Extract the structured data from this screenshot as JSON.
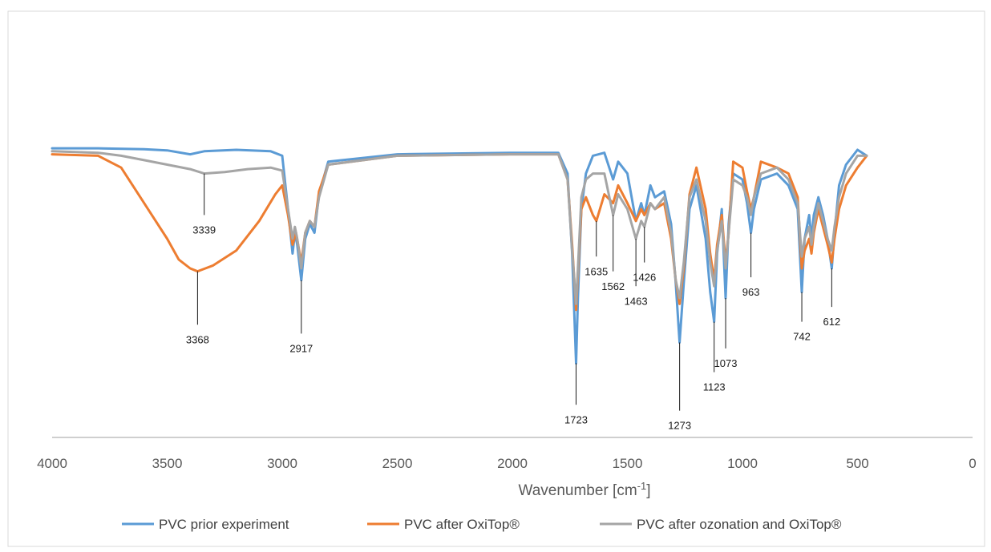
{
  "chart_data": {
    "type": "line",
    "title": "",
    "xlabel_main": "Wavenumber [cm",
    "xlabel_sup": "-1",
    "xlabel_tail": "]",
    "ylabel": "",
    "xlim": [
      4000,
      0
    ],
    "x_reversed": true,
    "ylim": [
      0,
      100
    ],
    "grid": false,
    "legend_position": "bottom",
    "x_ticks": [
      "4000",
      "3500",
      "3000",
      "2500",
      "2000",
      "1500",
      "1000",
      "500",
      "0"
    ],
    "series": [
      {
        "name": "PVC prior experiment",
        "color": "#5B9BD5",
        "points": [
          [
            4000,
            90.5
          ],
          [
            3800,
            90.5
          ],
          [
            3600,
            90.2
          ],
          [
            3500,
            89.8
          ],
          [
            3400,
            88.5
          ],
          [
            3339,
            89.5
          ],
          [
            3200,
            90
          ],
          [
            3050,
            89.5
          ],
          [
            3000,
            88
          ],
          [
            2975,
            70
          ],
          [
            2955,
            55
          ],
          [
            2945,
            62
          ],
          [
            2935,
            58
          ],
          [
            2917,
            46
          ],
          [
            2900,
            60
          ],
          [
            2880,
            65
          ],
          [
            2860,
            62
          ],
          [
            2840,
            75
          ],
          [
            2800,
            86
          ],
          [
            2500,
            88.5
          ],
          [
            2000,
            89
          ],
          [
            1800,
            89
          ],
          [
            1760,
            82
          ],
          [
            1740,
            55
          ],
          [
            1723,
            18
          ],
          [
            1715,
            40
          ],
          [
            1700,
            70
          ],
          [
            1680,
            82
          ],
          [
            1650,
            88
          ],
          [
            1600,
            89
          ],
          [
            1562,
            80
          ],
          [
            1540,
            86
          ],
          [
            1500,
            82
          ],
          [
            1463,
            66
          ],
          [
            1440,
            72
          ],
          [
            1426,
            68
          ],
          [
            1400,
            78
          ],
          [
            1380,
            74
          ],
          [
            1340,
            76
          ],
          [
            1310,
            65
          ],
          [
            1290,
            45
          ],
          [
            1273,
            25
          ],
          [
            1255,
            45
          ],
          [
            1230,
            70
          ],
          [
            1200,
            78
          ],
          [
            1160,
            60
          ],
          [
            1140,
            42
          ],
          [
            1123,
            32
          ],
          [
            1110,
            55
          ],
          [
            1090,
            70
          ],
          [
            1073,
            40
          ],
          [
            1060,
            65
          ],
          [
            1040,
            82
          ],
          [
            1000,
            80
          ],
          [
            980,
            72
          ],
          [
            963,
            62
          ],
          [
            950,
            70
          ],
          [
            920,
            80
          ],
          [
            850,
            82
          ],
          [
            800,
            78
          ],
          [
            760,
            70
          ],
          [
            742,
            42
          ],
          [
            730,
            60
          ],
          [
            710,
            68
          ],
          [
            700,
            60
          ],
          [
            690,
            68
          ],
          [
            670,
            74
          ],
          [
            650,
            68
          ],
          [
            630,
            60
          ],
          [
            612,
            50
          ],
          [
            600,
            62
          ],
          [
            580,
            78
          ],
          [
            550,
            85
          ],
          [
            500,
            90
          ],
          [
            460,
            88
          ]
        ]
      },
      {
        "name": "PVC after OxiTop®",
        "color": "#ED7D31",
        "points": [
          [
            4000,
            88.5
          ],
          [
            3800,
            88
          ],
          [
            3700,
            84
          ],
          [
            3600,
            72
          ],
          [
            3500,
            60
          ],
          [
            3450,
            53
          ],
          [
            3400,
            50
          ],
          [
            3368,
            49
          ],
          [
            3300,
            51
          ],
          [
            3200,
            56
          ],
          [
            3100,
            66
          ],
          [
            3030,
            75
          ],
          [
            3000,
            78
          ],
          [
            2975,
            68
          ],
          [
            2955,
            58
          ],
          [
            2940,
            62
          ],
          [
            2917,
            52
          ],
          [
            2900,
            62
          ],
          [
            2880,
            66
          ],
          [
            2860,
            64
          ],
          [
            2840,
            76
          ],
          [
            2800,
            85
          ],
          [
            2500,
            88
          ],
          [
            2000,
            88.5
          ],
          [
            1800,
            88.5
          ],
          [
            1760,
            80
          ],
          [
            1740,
            58
          ],
          [
            1723,
            36
          ],
          [
            1715,
            48
          ],
          [
            1700,
            70
          ],
          [
            1680,
            74
          ],
          [
            1650,
            68
          ],
          [
            1635,
            66
          ],
          [
            1600,
            75
          ],
          [
            1562,
            72
          ],
          [
            1540,
            78
          ],
          [
            1500,
            72
          ],
          [
            1463,
            66
          ],
          [
            1440,
            70
          ],
          [
            1426,
            68
          ],
          [
            1400,
            72
          ],
          [
            1380,
            70
          ],
          [
            1340,
            72
          ],
          [
            1310,
            60
          ],
          [
            1290,
            46
          ],
          [
            1273,
            38
          ],
          [
            1255,
            50
          ],
          [
            1230,
            75
          ],
          [
            1200,
            84
          ],
          [
            1160,
            70
          ],
          [
            1140,
            55
          ],
          [
            1123,
            46
          ],
          [
            1110,
            58
          ],
          [
            1090,
            68
          ],
          [
            1073,
            52
          ],
          [
            1060,
            62
          ],
          [
            1040,
            86
          ],
          [
            1000,
            84
          ],
          [
            980,
            76
          ],
          [
            963,
            70
          ],
          [
            950,
            74
          ],
          [
            920,
            86
          ],
          [
            850,
            84
          ],
          [
            800,
            82
          ],
          [
            760,
            74
          ],
          [
            742,
            50
          ],
          [
            730,
            56
          ],
          [
            710,
            60
          ],
          [
            700,
            55
          ],
          [
            690,
            62
          ],
          [
            670,
            70
          ],
          [
            650,
            64
          ],
          [
            630,
            58
          ],
          [
            612,
            52
          ],
          [
            600,
            60
          ],
          [
            580,
            70
          ],
          [
            550,
            78
          ],
          [
            500,
            84
          ],
          [
            460,
            88
          ]
        ]
      },
      {
        "name": "PVC after ozonation and OxiTop®",
        "color": "#A5A5A5",
        "points": [
          [
            4000,
            89.5
          ],
          [
            3800,
            89
          ],
          [
            3700,
            88
          ],
          [
            3600,
            86.5
          ],
          [
            3500,
            85
          ],
          [
            3400,
            83.5
          ],
          [
            3339,
            82
          ],
          [
            3250,
            82.5
          ],
          [
            3150,
            83.5
          ],
          [
            3050,
            84
          ],
          [
            3000,
            83
          ],
          [
            2975,
            70
          ],
          [
            2955,
            60
          ],
          [
            2945,
            64
          ],
          [
            2935,
            60
          ],
          [
            2917,
            50
          ],
          [
            2900,
            62
          ],
          [
            2880,
            66
          ],
          [
            2860,
            64
          ],
          [
            2840,
            74
          ],
          [
            2800,
            85
          ],
          [
            2500,
            88
          ],
          [
            2000,
            88.5
          ],
          [
            1800,
            88.5
          ],
          [
            1760,
            80
          ],
          [
            1740,
            56
          ],
          [
            1723,
            38
          ],
          [
            1715,
            50
          ],
          [
            1700,
            74
          ],
          [
            1680,
            80
          ],
          [
            1650,
            82
          ],
          [
            1635,
            82
          ],
          [
            1600,
            82
          ],
          [
            1562,
            68
          ],
          [
            1540,
            75
          ],
          [
            1500,
            70
          ],
          [
            1463,
            60
          ],
          [
            1440,
            66
          ],
          [
            1426,
            64
          ],
          [
            1400,
            72
          ],
          [
            1380,
            70
          ],
          [
            1340,
            74
          ],
          [
            1310,
            62
          ],
          [
            1290,
            46
          ],
          [
            1273,
            40
          ],
          [
            1255,
            52
          ],
          [
            1230,
            74
          ],
          [
            1200,
            80
          ],
          [
            1160,
            66
          ],
          [
            1140,
            52
          ],
          [
            1123,
            44
          ],
          [
            1110,
            56
          ],
          [
            1090,
            66
          ],
          [
            1073,
            50
          ],
          [
            1060,
            62
          ],
          [
            1040,
            80
          ],
          [
            1000,
            78
          ],
          [
            980,
            74
          ],
          [
            963,
            68
          ],
          [
            950,
            74
          ],
          [
            920,
            82
          ],
          [
            850,
            84
          ],
          [
            800,
            80
          ],
          [
            760,
            72
          ],
          [
            742,
            54
          ],
          [
            730,
            60
          ],
          [
            710,
            64
          ],
          [
            700,
            58
          ],
          [
            690,
            64
          ],
          [
            670,
            72
          ],
          [
            650,
            66
          ],
          [
            630,
            60
          ],
          [
            612,
            56
          ],
          [
            600,
            64
          ],
          [
            580,
            74
          ],
          [
            550,
            82
          ],
          [
            500,
            88
          ],
          [
            460,
            88
          ]
        ]
      }
    ],
    "annotations": [
      {
        "label": "3368",
        "x": 3368,
        "y": 49,
        "line_end": 31,
        "text_y": 28
      },
      {
        "label": "3339",
        "x": 3339,
        "y": 82,
        "line_end": 68,
        "text_y": 65
      },
      {
        "label": "2917",
        "x": 2917,
        "y": 46,
        "line_end": 28,
        "text_y": 25
      },
      {
        "label": "1723",
        "x": 1723,
        "y": 18,
        "line_end": 4,
        "text_y": 1
      },
      {
        "label": "1635",
        "x": 1635,
        "y": 66,
        "line_end": 54,
        "text_y": 51
      },
      {
        "label": "1562",
        "x": 1562,
        "y": 68,
        "line_end": 49,
        "text_y": 46
      },
      {
        "label": "1463",
        "x": 1463,
        "y": 60,
        "line_end": 44,
        "text_y": 41
      },
      {
        "label": "1426",
        "x": 1426,
        "y": 64,
        "line_end": 52,
        "text_y": 49
      },
      {
        "label": "1273",
        "x": 1273,
        "y": 25,
        "line_end": 2,
        "text_y": -1
      },
      {
        "label": "1123",
        "x": 1123,
        "y": 32,
        "line_end": 15,
        "text_y": 12
      },
      {
        "label": "1073",
        "x": 1073,
        "y": 40,
        "line_end": 23,
        "text_y": 20
      },
      {
        "label": "963",
        "x": 963,
        "y": 62,
        "line_end": 47,
        "text_y": 44
      },
      {
        "label": "742",
        "x": 742,
        "y": 42,
        "line_end": 32,
        "text_y": 29
      },
      {
        "label": "612",
        "x": 612,
        "y": 50,
        "line_end": 37,
        "text_y": 34
      }
    ]
  }
}
